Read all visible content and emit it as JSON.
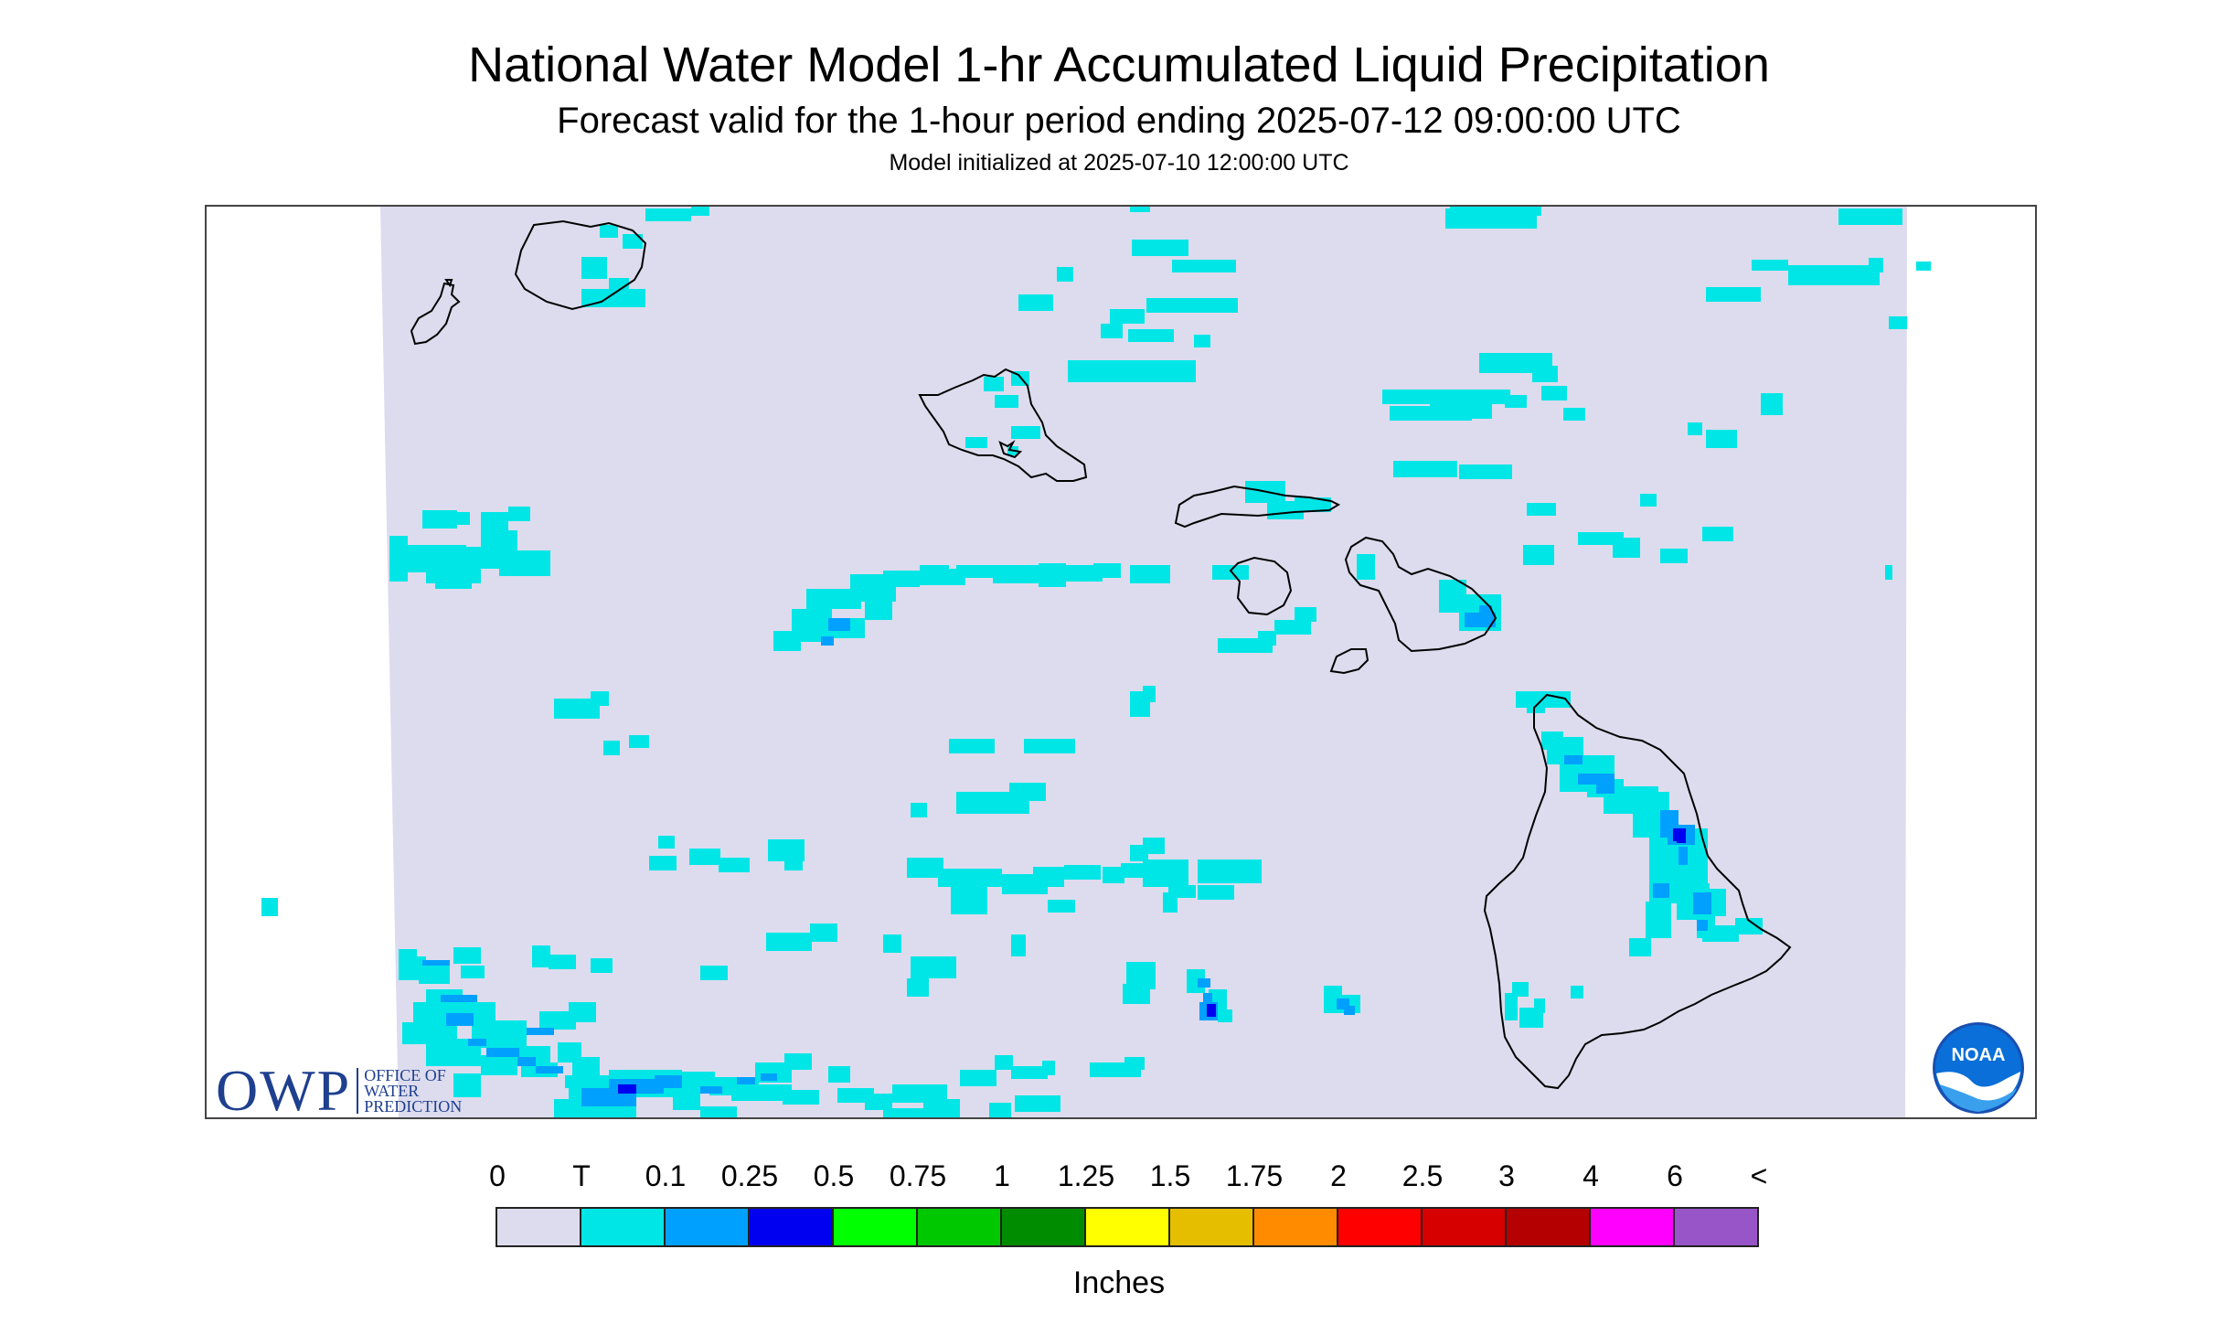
{
  "title": "National Water Model 1-hr Accumulated Liquid Precipitation",
  "subtitle": "Forecast valid for the 1-hour period ending 2025-07-12 09:00:00 UTC",
  "init_line": "Model initialized at 2025-07-10 12:00:00 UTC",
  "map": {
    "region": "Hawaii",
    "background_color": "#dcdcee",
    "coastline_color": "#000000"
  },
  "logos": {
    "owp_letters": "OWP",
    "owp_line1": "OFFICE OF",
    "owp_line2": "WATER",
    "owp_line3": "PREDICTION",
    "noaa_text": "NOAA"
  },
  "legend": {
    "labels": [
      "0",
      "T",
      "0.1",
      "0.25",
      "0.5",
      "0.75",
      "1",
      "1.25",
      "1.5",
      "1.75",
      "2",
      "2.5",
      "3",
      "4",
      "6",
      "<"
    ],
    "colors": [
      "#dcdcee",
      "#00e6e6",
      "#00a0ff",
      "#0000f0",
      "#00ff00",
      "#00c800",
      "#008c00",
      "#ffff00",
      "#e6be00",
      "#ff8c00",
      "#ff0000",
      "#d60000",
      "#b40000",
      "#ff00ff",
      "#9855c8"
    ],
    "units": "Inches"
  }
}
